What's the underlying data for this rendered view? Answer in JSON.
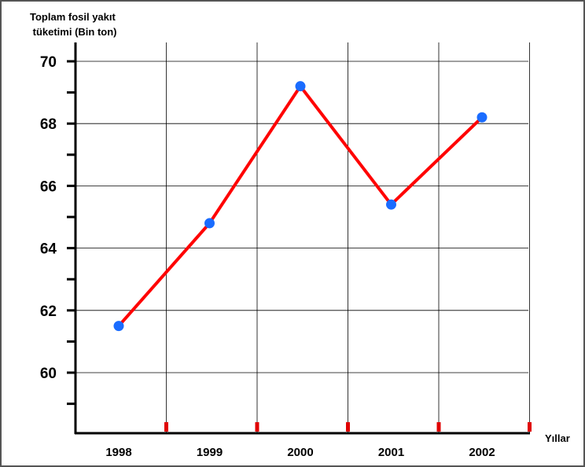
{
  "chart_data": {
    "type": "line",
    "title": "",
    "ylabel_line1": "Toplam fosil yakıt",
    "ylabel_line2": "tüketimi (Bin ton)",
    "xlabel": "Yıllar",
    "categories": [
      "1998",
      "1999",
      "2000",
      "2001",
      "2002"
    ],
    "series": [
      {
        "values": [
          61.5,
          64.8,
          69.2,
          65.4,
          68.2
        ]
      }
    ],
    "ylim": [
      59,
      70
    ],
    "yticks": [
      60,
      62,
      64,
      66,
      68,
      70
    ],
    "grid": true,
    "line_color": "#ff0000",
    "marker_color": "#1a6cff",
    "grid_color": "#000000",
    "tick_marker_color": "#e00000"
  }
}
